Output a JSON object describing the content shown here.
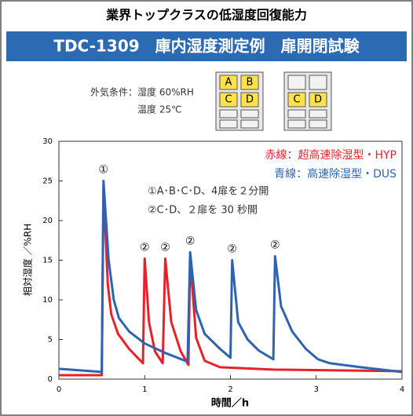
{
  "header": {
    "title": "業界トップクラスの低湿度回復能力",
    "banner": "TDC-1309　庫内湿度測定例　扉開閉試験"
  },
  "conditions": {
    "humidity": "外気条件：湿度 60%RH",
    "temperature": "温度 25℃"
  },
  "cabinets": [
    {
      "labels": [
        "A",
        "B",
        "C",
        "D"
      ]
    },
    {
      "labels": [
        "C",
        "D"
      ]
    }
  ],
  "chart_data": {
    "type": "line",
    "ylabel": "相対湿度 ／%RH",
    "xlabel": "時間／h",
    "xlim": [
      0,
      4
    ],
    "xticks": [
      0,
      1,
      2,
      3,
      4
    ],
    "ylim": [
      0,
      30
    ],
    "yticks": [
      0,
      5,
      10,
      15,
      20,
      25,
      30
    ],
    "legend_texts": [
      "赤線：超高速除湿型・HYP",
      "青線：高速除湿型・DUS"
    ],
    "notes": [
      "①A･B･C･D、4扉を２分開",
      "②C･D、２扉を 30 秒開"
    ],
    "annotations": [
      {
        "text": "①",
        "x": 0.52,
        "y": 25
      },
      {
        "text": "②",
        "x": 1.0,
        "y": 15.2
      },
      {
        "text": "②",
        "x": 1.24,
        "y": 15.2
      },
      {
        "text": "②",
        "x": 1.53,
        "y": 16
      },
      {
        "text": "②",
        "x": 2.02,
        "y": 15
      },
      {
        "text": "②",
        "x": 2.52,
        "y": 15.5
      }
    ],
    "series": [
      {
        "name": "HYP",
        "color": "#e8202a",
        "x": [
          0,
          0.5,
          0.52,
          0.57,
          0.61,
          0.69,
          0.82,
          0.98,
          1.0,
          1.05,
          1.12,
          1.21,
          1.24,
          1.31,
          1.42,
          1.51,
          1.53,
          1.6,
          1.7,
          1.88,
          2.5,
          4
        ],
        "values": [
          0.5,
          0.5,
          24.3,
          12,
          8.2,
          5.7,
          3.8,
          2,
          15.2,
          7.2,
          3.5,
          2,
          15.2,
          7.2,
          3.5,
          1.8,
          15.2,
          5.2,
          2.3,
          1.5,
          1.2,
          1.0
        ]
      },
      {
        "name": "DUS",
        "color": "#2e63b0",
        "x": [
          0,
          0.5,
          0.52,
          0.58,
          0.64,
          0.7,
          0.82,
          1.0,
          1.24,
          1.5,
          1.53,
          1.6,
          1.7,
          1.88,
          2.0,
          2.02,
          2.09,
          2.2,
          2.33,
          2.5,
          2.52,
          2.59,
          2.72,
          2.88,
          3.02,
          3.16,
          3.52,
          4
        ],
        "values": [
          1.3,
          0.9,
          25,
          15,
          10,
          7.7,
          6,
          4.5,
          3.3,
          2.2,
          16,
          8.7,
          5.7,
          3.8,
          2.7,
          15,
          7.2,
          5,
          3.6,
          2.5,
          15.5,
          9.2,
          6,
          3.8,
          2.5,
          2,
          1.5,
          0.9
        ]
      }
    ]
  }
}
